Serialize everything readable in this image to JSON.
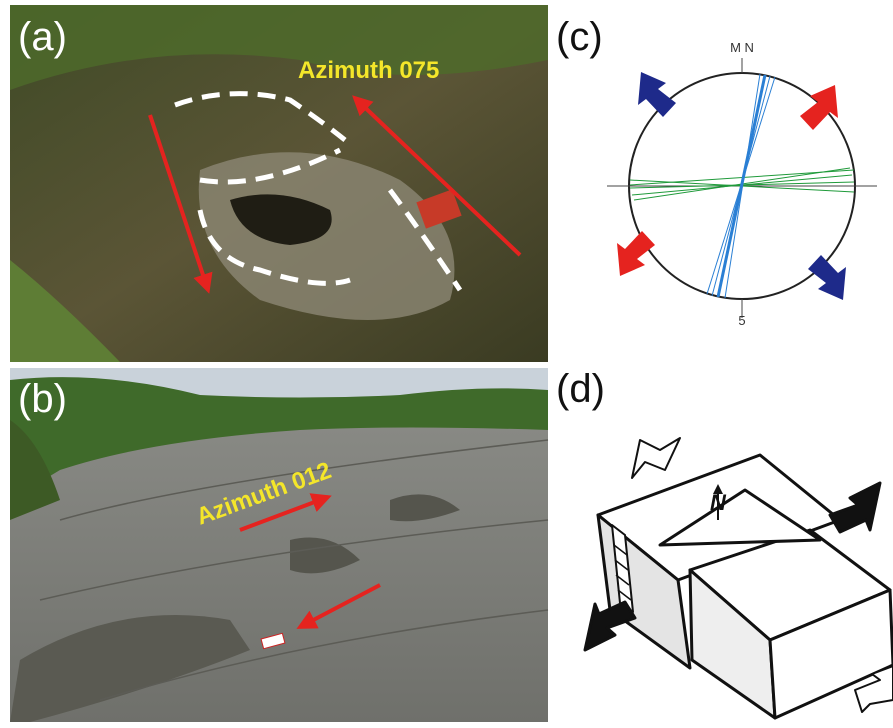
{
  "panels": {
    "a": {
      "label": "(a)",
      "annotation": "Azimuth 075"
    },
    "b": {
      "label": "(b)",
      "annotation": "Azimuth 012"
    },
    "c": {
      "label": "(c)",
      "north_labels": "M N",
      "south_label": "5"
    },
    "d": {
      "label": "(d)",
      "north_symbol": "N"
    }
  }
}
